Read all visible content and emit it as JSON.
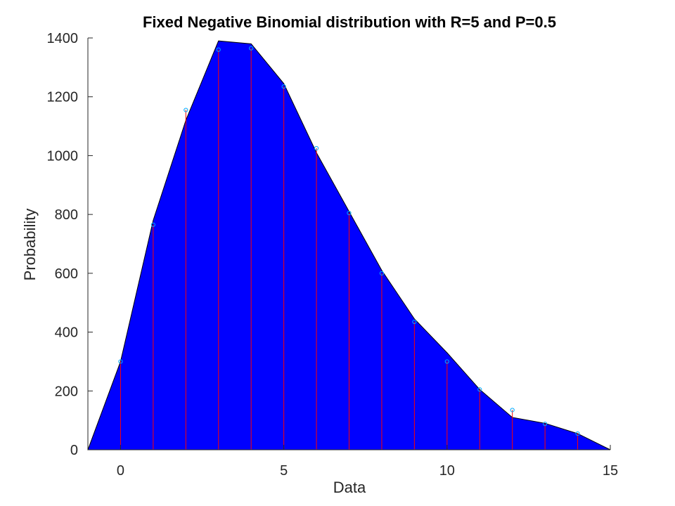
{
  "chart_data": {
    "type": "area",
    "title": "Fixed Negative Binomial distribution with R=5 and P=0.5",
    "xlabel": "Data",
    "ylabel": "Probability",
    "xlim": [
      -1,
      15
    ],
    "ylim": [
      0,
      1400
    ],
    "xticks": [
      0,
      5,
      10,
      15
    ],
    "yticks": [
      0,
      200,
      400,
      600,
      800,
      1000,
      1200,
      1400
    ],
    "grid": false,
    "legend": "none",
    "series": [
      {
        "kind": "area",
        "color": "#0000ff",
        "x": [
          -1,
          0,
          1,
          2,
          3,
          4,
          5,
          6,
          7,
          8,
          9,
          10,
          11,
          12,
          13,
          14,
          15
        ],
        "values": [
          0,
          300,
          780,
          1120,
          1390,
          1380,
          1245,
          1010,
          810,
          610,
          445,
          330,
          205,
          110,
          90,
          55,
          0
        ]
      },
      {
        "kind": "stem",
        "color": "#ff0000",
        "marker_color": "#00aaff",
        "x": [
          0,
          1,
          2,
          3,
          4,
          5,
          6,
          7,
          8,
          9,
          10,
          11,
          12,
          13,
          14
        ],
        "values": [
          300,
          765,
          1155,
          1360,
          1365,
          1235,
          1025,
          805,
          600,
          435,
          300,
          205,
          135,
          88,
          55
        ]
      }
    ]
  }
}
